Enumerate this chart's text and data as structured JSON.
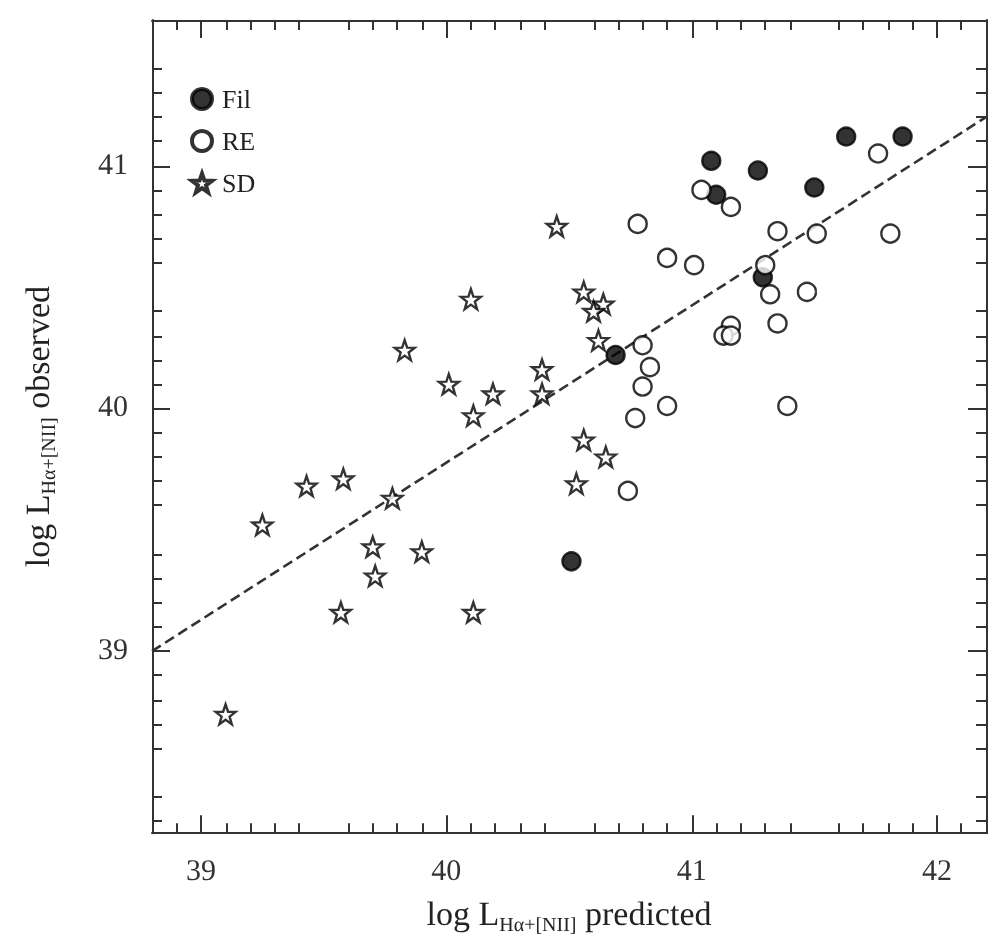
{
  "chart_data": {
    "type": "scatter",
    "xlabel": "log L$_{Hα+[NII]}$ predicted",
    "ylabel": "log L$_{Hα+[NII]}$ observed",
    "xlim": [
      38.8,
      42.2
    ],
    "xticks": [
      39,
      40,
      41,
      42
    ],
    "ylim": [
      38.25,
      41.6
    ],
    "yticks": [
      39,
      40,
      41
    ],
    "legend": "top left",
    "grid": false,
    "series": [
      {
        "name": "Fil",
        "color": "#000000",
        "marker": "circle",
        "x": [
          41.08,
          41.27,
          41.63,
          41.86,
          41.1,
          41.5,
          41.29,
          40.69,
          40.51
        ],
        "values": [
          41.02,
          40.98,
          41.12,
          41.12,
          40.88,
          40.91,
          40.54,
          40.22,
          39.37
        ]
      },
      {
        "name": "RE",
        "color": "#000000",
        "marker": "emptyCircle",
        "x": [
          41.04,
          41.16,
          41.76,
          40.78,
          41.35,
          41.51,
          41.81,
          40.9,
          41.01,
          41.3,
          41.32,
          41.47,
          41.35,
          41.16,
          41.13,
          41.16,
          40.8,
          40.83,
          40.8,
          40.77,
          40.9,
          41.39,
          40.74
        ],
        "values": [
          40.9,
          40.83,
          41.05,
          40.76,
          40.73,
          40.72,
          40.72,
          40.62,
          40.59,
          40.59,
          40.47,
          40.48,
          40.35,
          40.34,
          40.3,
          40.3,
          40.26,
          40.17,
          40.09,
          39.96,
          40.01,
          40.01,
          39.66
        ]
      },
      {
        "name": "SD",
        "color": "#000000",
        "marker": "star",
        "x": [
          40.1,
          39.83,
          40.01,
          40.19,
          40.11,
          40.39,
          40.39,
          40.45,
          40.56,
          40.64,
          40.6,
          40.62,
          40.56,
          40.65,
          40.53,
          39.25,
          39.43,
          39.58,
          39.78,
          39.7,
          39.9,
          39.71,
          39.57,
          40.11,
          39.1
        ],
        "values": [
          40.45,
          40.24,
          40.1,
          40.06,
          39.97,
          40.16,
          40.06,
          40.75,
          40.48,
          40.43,
          40.4,
          40.28,
          39.87,
          39.8,
          39.69,
          39.52,
          39.68,
          39.71,
          39.63,
          39.43,
          39.41,
          39.31,
          39.16,
          39.16,
          38.74
        ]
      },
      {
        "type": "line",
        "color": "#333333",
        "line_style": "dashed",
        "marker": "none",
        "x": [
          38.8,
          42.2
        ],
        "values": [
          39.0,
          41.2
        ]
      }
    ]
  }
}
